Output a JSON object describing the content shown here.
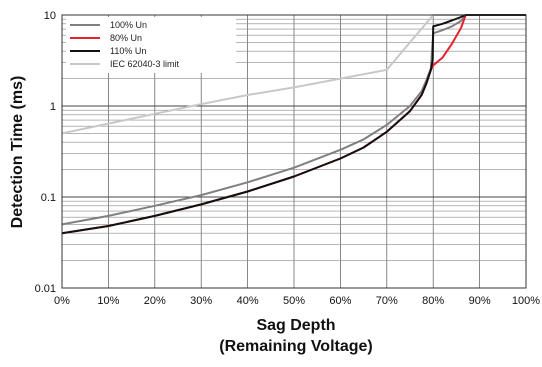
{
  "chart_data": {
    "type": "line",
    "xlabel_line1": "Sag Depth",
    "xlabel_line2": "(Remaining Voltage)",
    "ylabel": "Detection Time (ms)",
    "x_scale": "linear",
    "y_scale": "log",
    "xlim": [
      0,
      100
    ],
    "ylim": [
      0.01,
      10
    ],
    "x_ticks": [
      0,
      10,
      20,
      30,
      40,
      50,
      60,
      70,
      80,
      90,
      100
    ],
    "x_tick_labels": [
      "0%",
      "10%",
      "20%",
      "30%",
      "40%",
      "50%",
      "60%",
      "70%",
      "80%",
      "90%",
      "100%"
    ],
    "y_ticks": [
      0.01,
      0.1,
      1,
      10
    ],
    "y_tick_labels": [
      "0.01",
      "0.1",
      "1",
      "10"
    ],
    "grid": true,
    "legend_position": "top-left",
    "series": [
      {
        "name": "100% Un",
        "color": "#808080",
        "x": [
          0,
          10,
          20,
          30,
          40,
          50,
          60,
          65,
          70,
          75,
          77.5,
          78.5,
          79.5,
          80,
          82,
          84,
          86,
          87,
          100
        ],
        "y": [
          0.05,
          0.062,
          0.08,
          0.105,
          0.145,
          0.21,
          0.33,
          0.43,
          0.62,
          1.0,
          1.45,
          1.9,
          2.6,
          6.3,
          6.8,
          7.5,
          8.6,
          10,
          10
        ]
      },
      {
        "name": "80% Un",
        "color": "#e8212e",
        "x": [
          0,
          10,
          20,
          30,
          40,
          50,
          60,
          65,
          70,
          75,
          77.5,
          78.5,
          79.5,
          80,
          82,
          84,
          86,
          87,
          100
        ],
        "y": [
          0.04,
          0.048,
          0.062,
          0.083,
          0.115,
          0.168,
          0.265,
          0.35,
          0.52,
          0.88,
          1.32,
          1.75,
          2.5,
          2.8,
          3.4,
          4.8,
          7.2,
          10,
          10
        ]
      },
      {
        "name": "110% Un",
        "color": "#111111",
        "x": [
          0,
          10,
          20,
          30,
          40,
          50,
          60,
          65,
          70,
          75,
          77.5,
          78.5,
          79.5,
          79.9,
          80,
          82,
          84,
          86,
          87,
          100
        ],
        "y": [
          0.04,
          0.048,
          0.062,
          0.083,
          0.115,
          0.168,
          0.265,
          0.35,
          0.52,
          0.88,
          1.32,
          1.75,
          2.5,
          3.2,
          7.5,
          8.0,
          8.7,
          9.5,
          10,
          10
        ]
      },
      {
        "name": "IEC 62040-3 limit",
        "color": "#c8c8c8",
        "x": [
          0,
          10,
          20,
          30,
          40,
          50,
          60,
          70,
          75,
          80,
          100
        ],
        "y": [
          0.5,
          0.64,
          0.82,
          1.05,
          1.32,
          1.6,
          2.0,
          2.5,
          5.0,
          10,
          10
        ]
      }
    ]
  }
}
